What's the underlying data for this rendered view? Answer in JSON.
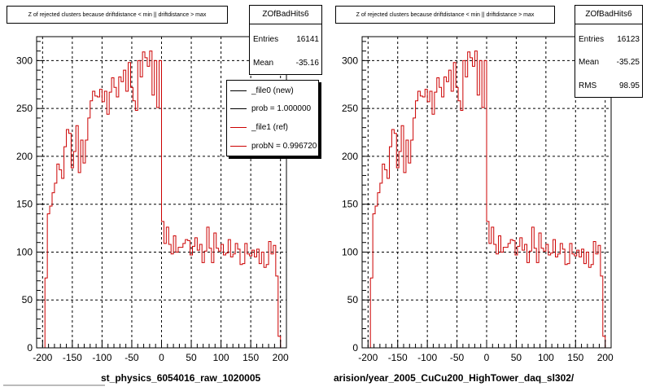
{
  "chart_data": [
    {
      "type": "histogram",
      "title": "Z of rejected clusters because driftdistance < min || driftdistance > max",
      "xlabel": "st_physics_6054016_raw_1020005",
      "x_ticks": [
        "-200",
        "-150",
        "-100",
        "-50",
        "0",
        "50",
        "100",
        "150",
        "200"
      ],
      "y_ticks": [
        "0",
        "50",
        "100",
        "150",
        "200",
        "250",
        "300"
      ],
      "xlim": [
        -210,
        210
      ],
      "ylim": [
        0,
        325
      ],
      "grid": true,
      "stats": {
        "name": "ZOfBadHits6",
        "rows": [
          {
            "label": "Entries",
            "value": "16141"
          },
          {
            "label": "Mean",
            "value": "-35.16"
          }
        ]
      },
      "legend": {
        "placement": "top-right",
        "entries": [
          {
            "label": "_file0 (new)",
            "color": "#000000"
          },
          {
            "label": "prob = 1.000000",
            "color": "#000000"
          },
          {
            "label": "_file1 (ref)",
            "color": "#cc0000"
          },
          {
            "label": "probN = 0.996720",
            "color": "#cc0000"
          }
        ]
      },
      "series": [
        {
          "color": "#cc0000",
          "bin_start": -200,
          "bin_width": 4,
          "values": [
            0,
            73,
            140,
            148,
            162,
            172,
            192,
            186,
            177,
            210,
            228,
            224,
            188,
            205,
            232,
            183,
            217,
            193,
            217,
            240,
            258,
            268,
            263,
            262,
            270,
            257,
            268,
            244,
            267,
            282,
            272,
            262,
            283,
            278,
            290,
            268,
            298,
            272,
            258,
            248,
            300,
            283,
            309,
            303,
            294,
            310,
            264,
            300,
            251,
            300,
            132,
            109,
            126,
            108,
            98,
            117,
            100,
            105,
            105,
            109,
            113,
            112,
            97,
            106,
            115,
            102,
            108,
            89,
            101,
            126,
            104,
            89,
            120,
            104,
            101,
            108,
            97,
            99,
            113,
            95,
            98,
            109,
            103,
            87,
            88,
            109,
            98,
            96,
            102,
            95,
            103,
            88,
            100,
            84,
            87,
            111,
            98,
            107,
            75,
            12,
            0
          ]
        }
      ]
    },
    {
      "type": "histogram",
      "title": "Z of rejected clusters because driftdistance < min || driftdistance > max",
      "xlabel": "arision/year_2005_CuCu200_HighTower_daq_sl302/",
      "x_ticks": [
        "-200",
        "-150",
        "-100",
        "-50",
        "0",
        "50",
        "100",
        "150",
        "200"
      ],
      "y_ticks": [
        "0",
        "50",
        "100",
        "150",
        "200",
        "250",
        "300"
      ],
      "xlim": [
        -210,
        210
      ],
      "ylim": [
        0,
        325
      ],
      "grid": true,
      "stats": {
        "name": "ZOfBadHits6",
        "rows": [
          {
            "label": "Entries",
            "value": "16123"
          },
          {
            "label": "Mean",
            "value": "-35.25"
          },
          {
            "label": "RMS",
            "value": "98.95"
          }
        ]
      },
      "series": [
        {
          "color": "#cc0000",
          "bin_start": -200,
          "bin_width": 4,
          "values": [
            0,
            73,
            140,
            148,
            162,
            172,
            192,
            186,
            177,
            210,
            228,
            224,
            188,
            205,
            232,
            183,
            217,
            193,
            217,
            240,
            258,
            268,
            263,
            262,
            270,
            257,
            268,
            244,
            267,
            282,
            272,
            262,
            283,
            278,
            290,
            268,
            298,
            272,
            258,
            248,
            300,
            283,
            309,
            303,
            294,
            310,
            264,
            300,
            251,
            300,
            132,
            109,
            126,
            108,
            98,
            117,
            100,
            105,
            105,
            109,
            113,
            112,
            97,
            106,
            115,
            102,
            108,
            89,
            101,
            126,
            104,
            89,
            120,
            104,
            101,
            108,
            97,
            99,
            113,
            95,
            98,
            109,
            103,
            87,
            88,
            109,
            98,
            96,
            102,
            95,
            103,
            88,
            100,
            84,
            87,
            111,
            98,
            107,
            75,
            12,
            0
          ]
        }
      ]
    }
  ]
}
